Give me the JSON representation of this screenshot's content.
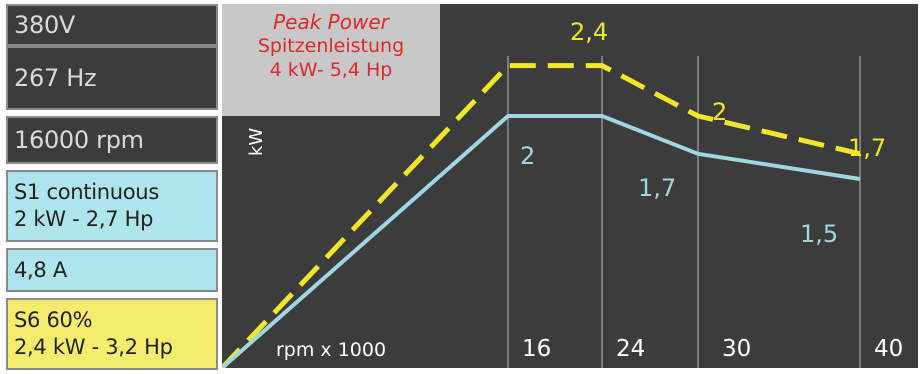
{
  "specs": {
    "voltage": "380V",
    "frequency": "267 Hz",
    "speed": "16000 rpm",
    "s1": {
      "line1": "S1  continuous",
      "line2": "2 kW - 2,7 Hp"
    },
    "current": "4,8 A",
    "s6": {
      "line1": "S6  60%",
      "line2": "2,4 kW - 3,2 Hp"
    }
  },
  "peak": {
    "line1": "Peak  Power",
    "line2": "Spitzenleistung",
    "line3": "4 kW- 5,4 Hp"
  },
  "colors": {
    "cyan": "#9fd6e0",
    "yellow": "#f0e62a",
    "background": "#3c3c3c",
    "peak_text": "#e0282a"
  },
  "chart_data": {
    "type": "line",
    "xlabel": "rpm x 1000",
    "ylabel": "kW",
    "x": [
      0,
      16,
      24,
      30,
      40
    ],
    "tick_labels": [
      "16",
      "24",
      "30",
      "40"
    ],
    "series": [
      {
        "name": "S6 60%",
        "style": "dashed",
        "color": "#f0e62a",
        "values": [
          0,
          2.4,
          2.4,
          2.0,
          1.7
        ],
        "labels": [
          "",
          "2,4",
          "",
          "2",
          "1,7"
        ]
      },
      {
        "name": "S1 continuous",
        "style": "solid",
        "color": "#9fd6e0",
        "values": [
          0,
          2.0,
          2.0,
          1.7,
          1.5
        ],
        "labels": [
          "",
          "2",
          "",
          "1,7",
          "1,5"
        ]
      }
    ]
  }
}
